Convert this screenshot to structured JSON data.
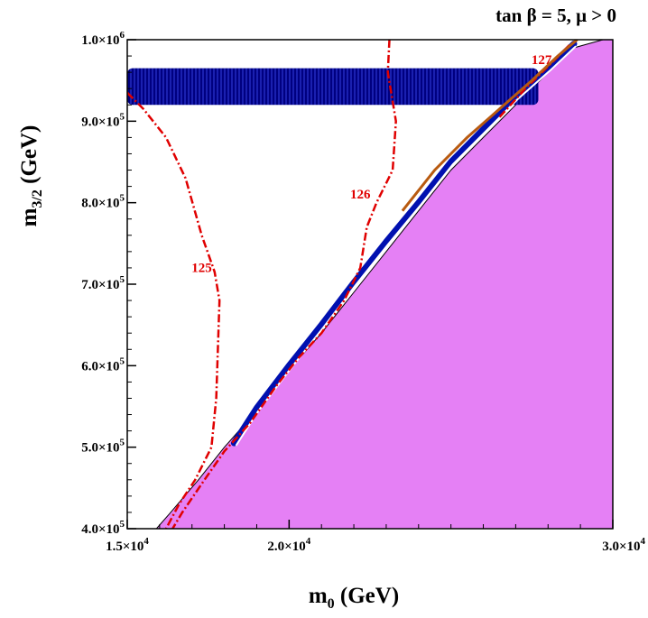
{
  "chart_data": {
    "type": "contour",
    "title": "tan β = 5,  μ > 0",
    "xlabel_main": "m",
    "xlabel_sub": "0",
    "xlabel_unit": " (GeV)",
    "ylabel_main": "m",
    "ylabel_sub": "3/2",
    "ylabel_unit": " (GeV)",
    "xlim": [
      15000,
      30000
    ],
    "ylim": [
      400000,
      1000000
    ],
    "x_ticks": [
      {
        "value": 15000,
        "mantissa": "1.5×10",
        "exp": "4"
      },
      {
        "value": 20000,
        "mantissa": "2.0×10",
        "exp": "4"
      },
      {
        "value": 30000,
        "mantissa": "3.0×10",
        "exp": "4"
      }
    ],
    "y_ticks": [
      {
        "value": 400000,
        "mantissa": "4.0×10",
        "exp": "5"
      },
      {
        "value": 500000,
        "mantissa": "5.0×10",
        "exp": "5"
      },
      {
        "value": 600000,
        "mantissa": "6.0×10",
        "exp": "5"
      },
      {
        "value": 700000,
        "mantissa": "7.0×10",
        "exp": "5"
      },
      {
        "value": 800000,
        "mantissa": "8.0×10",
        "exp": "5"
      },
      {
        "value": 900000,
        "mantissa": "9.0×10",
        "exp": "5"
      },
      {
        "value": 1000000,
        "mantissa": "1.0×10",
        "exp": "6"
      }
    ],
    "excluded_region": {
      "color": "#e580f5",
      "boundary": [
        [
          15900,
          400000
        ],
        [
          16300,
          418000
        ],
        [
          17200,
          460000
        ],
        [
          18000,
          500000
        ],
        [
          19000,
          545000
        ],
        [
          20000,
          595000
        ],
        [
          21000,
          640000
        ],
        [
          22000,
          690000
        ],
        [
          23000,
          740000
        ],
        [
          24000,
          790000
        ],
        [
          25000,
          840000
        ],
        [
          26000,
          880000
        ],
        [
          27000,
          920000
        ],
        [
          28000,
          960000
        ],
        [
          28800,
          990000
        ],
        [
          29700,
          1000000
        ]
      ]
    },
    "dark_matter_band_upper": {
      "color": "#0000a0",
      "x_range": [
        15000,
        27700
      ],
      "y_range": [
        920000,
        965000
      ]
    },
    "dark_matter_strip": {
      "color": "#0010b0",
      "points": [
        [
          18300,
          505000
        ],
        [
          19000,
          548000
        ],
        [
          20000,
          600000
        ],
        [
          21000,
          650000
        ],
        [
          22000,
          702000
        ],
        [
          23000,
          752000
        ],
        [
          24000,
          800000
        ],
        [
          25000,
          850000
        ],
        [
          26000,
          890000
        ],
        [
          27000,
          930000
        ],
        [
          28000,
          965000
        ],
        [
          28800,
          995000
        ]
      ]
    },
    "higgs_contours": [
      {
        "label": "125",
        "color": "#e00000",
        "label_value": [
          17300,
          715000
        ],
        "points": [
          [
            15000,
            935000
          ],
          [
            15500,
            915000
          ],
          [
            16200,
            880000
          ],
          [
            16800,
            830000
          ],
          [
            17300,
            760000
          ],
          [
            17700,
            715000
          ],
          [
            17850,
            680000
          ],
          [
            17800,
            620000
          ],
          [
            17750,
            560000
          ],
          [
            17600,
            500000
          ],
          [
            17100,
            460000
          ],
          [
            16600,
            430000
          ],
          [
            16200,
            400000
          ]
        ]
      },
      {
        "label": "126",
        "color": "#e00000",
        "label_value": [
          22200,
          805000
        ],
        "points": [
          [
            23100,
            1000000
          ],
          [
            23050,
            960000
          ],
          [
            23300,
            900000
          ],
          [
            23200,
            840000
          ],
          [
            22700,
            800000
          ],
          [
            22400,
            770000
          ],
          [
            22200,
            720000
          ],
          [
            21700,
            680000
          ],
          [
            21000,
            640000
          ],
          [
            20300,
            610000
          ],
          [
            19600,
            575000
          ],
          [
            18800,
            530000
          ],
          [
            18000,
            495000
          ],
          [
            17300,
            455000
          ],
          [
            16700,
            420000
          ],
          [
            16400,
            400000
          ]
        ]
      },
      {
        "label": "127",
        "color": "#e00000",
        "label_value": [
          27800,
          970000
        ],
        "points": [
          [
            26500,
            905000
          ],
          [
            27300,
            940000
          ],
          [
            28200,
            975000
          ],
          [
            28700,
            995000
          ]
        ]
      },
      {
        "label": "",
        "color": "#b85a10",
        "label_value": [
          0,
          0
        ],
        "points": [
          [
            23500,
            790000
          ],
          [
            24500,
            840000
          ],
          [
            25500,
            880000
          ],
          [
            26500,
            915000
          ],
          [
            27500,
            950000
          ],
          [
            28300,
            980000
          ],
          [
            28900,
            1000000
          ]
        ]
      }
    ],
    "grid": false,
    "legend": "none"
  }
}
